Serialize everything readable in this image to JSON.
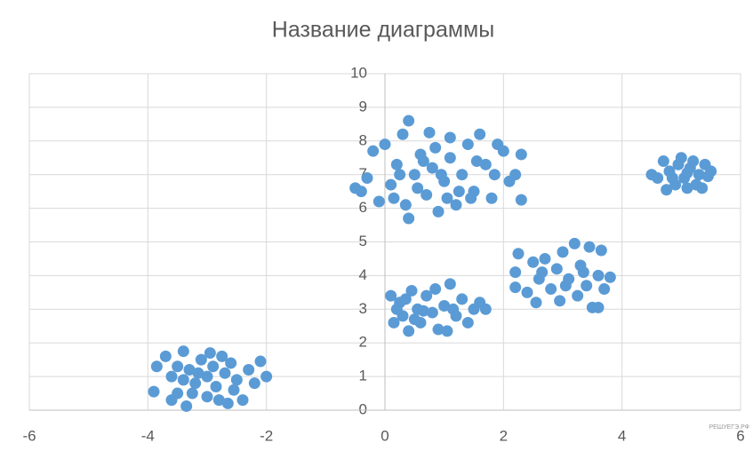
{
  "chart_data": {
    "type": "scatter",
    "title": "Название диаграммы",
    "watermark": "РЕШУЕГЭ.РФ",
    "color": "#5b9bd5",
    "grid": true,
    "xlim": [
      -6,
      6
    ],
    "xticks": [
      -6,
      -4,
      -2,
      0,
      2,
      4,
      6
    ],
    "ylim": [
      0,
      10
    ],
    "yticks": [
      0,
      1,
      2,
      3,
      4,
      5,
      6,
      7,
      8,
      9,
      10
    ],
    "x": [
      -3.9,
      -3.85,
      -3.7,
      -3.6,
      -3.5,
      -3.4,
      -3.35,
      -3.3,
      -3.2,
      -3.1,
      -3.0,
      -3.0,
      -2.9,
      -2.85,
      -2.8,
      -2.7,
      -2.6,
      -2.55,
      -2.5,
      -2.4,
      -2.3,
      -2.2,
      -2.1,
      -2.0,
      -3.6,
      -3.5,
      -3.25,
      -2.95,
      -2.65,
      -3.4,
      -2.75,
      -3.15,
      -0.5,
      -0.4,
      -0.3,
      -0.2,
      -0.1,
      0.0,
      0.1,
      0.2,
      0.3,
      0.35,
      0.4,
      0.4,
      0.5,
      0.6,
      0.7,
      0.75,
      0.8,
      0.9,
      1.0,
      1.1,
      1.1,
      1.2,
      1.3,
      1.4,
      1.5,
      1.6,
      1.7,
      1.8,
      1.9,
      2.0,
      2.1,
      2.2,
      2.3,
      2.3,
      0.15,
      0.55,
      0.95,
      1.25,
      1.55,
      1.85,
      0.25,
      0.65,
      1.45,
      1.05,
      0.85,
      0.1,
      0.15,
      0.2,
      0.3,
      0.35,
      0.4,
      0.45,
      0.55,
      0.6,
      0.7,
      0.8,
      0.85,
      0.9,
      1.0,
      1.05,
      1.1,
      1.2,
      1.3,
      1.4,
      1.5,
      1.6,
      1.7,
      0.25,
      0.65,
      1.15,
      0.5,
      2.2,
      2.2,
      2.25,
      2.4,
      2.5,
      2.55,
      2.6,
      2.7,
      2.8,
      2.9,
      2.95,
      3.0,
      3.1,
      3.2,
      3.25,
      3.3,
      3.4,
      3.45,
      3.5,
      3.6,
      3.6,
      3.65,
      3.7,
      3.8,
      2.65,
      3.05,
      3.35,
      4.5,
      4.6,
      4.7,
      4.75,
      4.8,
      4.9,
      4.95,
      5.0,
      5.05,
      5.1,
      5.15,
      5.2,
      5.25,
      5.3,
      5.35,
      5.4,
      5.45,
      5.5,
      4.85,
      5.1
    ],
    "values": [
      0.55,
      1.3,
      1.6,
      1.0,
      0.5,
      1.75,
      0.12,
      1.2,
      0.8,
      1.5,
      0.4,
      1.0,
      1.3,
      0.7,
      0.3,
      1.1,
      1.4,
      0.6,
      0.9,
      0.3,
      1.2,
      0.8,
      1.45,
      1.0,
      0.3,
      1.3,
      0.5,
      1.7,
      0.2,
      0.9,
      1.6,
      1.1,
      6.6,
      6.5,
      6.9,
      7.7,
      6.2,
      7.9,
      6.7,
      7.3,
      8.2,
      6.1,
      8.6,
      5.7,
      7.0,
      7.6,
      6.4,
      8.25,
      7.2,
      5.9,
      6.8,
      7.5,
      8.1,
      6.1,
      7.0,
      7.9,
      6.5,
      8.2,
      7.3,
      6.3,
      7.9,
      7.7,
      6.8,
      7.0,
      7.6,
      6.25,
      6.3,
      6.6,
      7.0,
      6.5,
      7.4,
      7.0,
      7.0,
      7.4,
      6.3,
      6.3,
      7.8,
      3.4,
      2.6,
      3.0,
      2.8,
      3.3,
      2.35,
      3.55,
      3.0,
      2.6,
      3.4,
      2.9,
      3.6,
      2.4,
      3.1,
      2.35,
      3.75,
      2.8,
      3.3,
      2.6,
      3.0,
      3.2,
      3.0,
      3.2,
      2.95,
      3.0,
      2.7,
      3.65,
      4.1,
      4.65,
      3.5,
      4.4,
      3.2,
      3.9,
      4.5,
      3.6,
      4.2,
      3.25,
      4.7,
      3.9,
      4.95,
      3.4,
      4.3,
      3.7,
      4.85,
      3.05,
      3.05,
      4.0,
      4.75,
      3.6,
      3.95,
      4.1,
      3.7,
      4.1,
      7.0,
      6.9,
      7.4,
      6.55,
      7.1,
      6.7,
      7.3,
      7.5,
      6.9,
      6.6,
      7.2,
      7.4,
      6.7,
      7.0,
      6.6,
      7.3,
      6.95,
      7.1,
      6.9,
      7.05
    ]
  }
}
